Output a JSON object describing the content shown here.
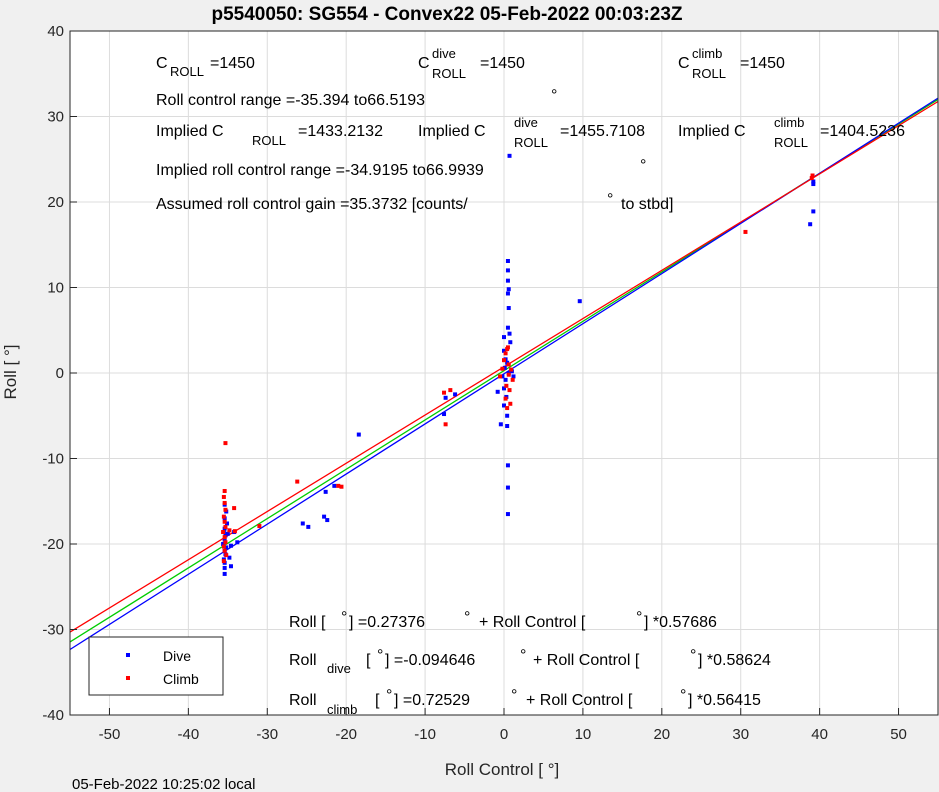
{
  "chart_data": {
    "type": "scatter",
    "title": "p5540050: SG554 - Convex22 05-Feb-2022 00:03:23Z",
    "xlabel": "Roll Control [   °]",
    "ylabel": "Roll [   °]",
    "xlim": [
      -55,
      55
    ],
    "ylim": [
      -40,
      40
    ],
    "xticks": [
      -50,
      -40,
      -30,
      -20,
      -10,
      0,
      10,
      20,
      30,
      40,
      50
    ],
    "yticks": [
      -40,
      -30,
      -20,
      -10,
      0,
      10,
      20,
      30,
      40
    ],
    "grid": true,
    "legend_position": "bottom-left",
    "series": [
      {
        "name": "Dive",
        "color": "#0000ff",
        "points": [
          [
            -35.4,
            -23.5
          ],
          [
            -35.4,
            -22.8
          ],
          [
            -35.4,
            -22.2
          ],
          [
            -35.5,
            -21.8
          ],
          [
            -35.3,
            -21.2
          ],
          [
            -35.4,
            -20.8
          ],
          [
            -35.2,
            -20.4
          ],
          [
            -35.6,
            -20
          ],
          [
            -35.4,
            -19.5
          ],
          [
            -35.3,
            -19
          ],
          [
            -35.5,
            -18.6
          ],
          [
            -35.4,
            -18.2
          ],
          [
            -35.1,
            -17.6
          ],
          [
            -35.4,
            -17
          ],
          [
            -35.2,
            -16.2
          ],
          [
            -35.4,
            -15.4
          ],
          [
            -34.8,
            -21.6
          ],
          [
            -34.6,
            -22.6
          ],
          [
            -35,
            -18.8
          ],
          [
            -34.6,
            -20.2
          ],
          [
            -34.2,
            -18.6
          ],
          [
            -33.8,
            -19.8
          ],
          [
            -25.5,
            -17.6
          ],
          [
            -24.8,
            -18
          ],
          [
            -22.8,
            -16.8
          ],
          [
            -22.4,
            -17.2
          ],
          [
            -22.6,
            -13.9
          ],
          [
            -21.5,
            -13.2
          ],
          [
            -18.4,
            -7.2
          ],
          [
            -7.6,
            -4.8
          ],
          [
            -7.4,
            -2.9
          ],
          [
            -6.2,
            -2.5
          ],
          [
            -0.8,
            -2.2
          ],
          [
            -0.4,
            -6
          ],
          [
            0,
            -3.8
          ],
          [
            0,
            -1.8
          ],
          [
            -0.2,
            -0.4
          ],
          [
            0.1,
            0.6
          ],
          [
            0.2,
            1.6
          ],
          [
            0,
            2.6
          ],
          [
            0,
            4.2
          ],
          [
            0.2,
            -0.8
          ],
          [
            0.3,
            -2.8
          ],
          [
            0.4,
            -5
          ],
          [
            0.4,
            -6.2
          ],
          [
            0.5,
            -10.8
          ],
          [
            0.5,
            -13.4
          ],
          [
            0.5,
            -16.5
          ],
          [
            0.5,
            13.1
          ],
          [
            0.5,
            12
          ],
          [
            0.5,
            10.8
          ],
          [
            0.6,
            9.8
          ],
          [
            0.5,
            9.3
          ],
          [
            0.6,
            7.6
          ],
          [
            0.5,
            5.3
          ],
          [
            0.7,
            4.6
          ],
          [
            0.8,
            3.6
          ],
          [
            0.4,
            1.2
          ],
          [
            0.6,
            0
          ],
          [
            1,
            0.2
          ],
          [
            1.2,
            -0.4
          ],
          [
            9.6,
            8.4
          ],
          [
            38.8,
            17.4
          ],
          [
            39.2,
            18.9
          ],
          [
            39.2,
            22.1
          ],
          [
            39.2,
            22.4
          ],
          [
            0.7,
            25.4
          ]
        ]
      },
      {
        "name": "Climb",
        "color": "#ff0000",
        "points": [
          [
            -35.3,
            -8.2
          ],
          [
            -35.4,
            -13.8
          ],
          [
            -35.5,
            -14.5
          ],
          [
            -35.4,
            -15.2
          ],
          [
            -35.3,
            -16
          ],
          [
            -35.5,
            -16.8
          ],
          [
            -35.4,
            -17.4
          ],
          [
            -35.3,
            -18
          ],
          [
            -35.6,
            -18.6
          ],
          [
            -35.4,
            -19.2
          ],
          [
            -35.3,
            -19.8
          ],
          [
            -35.5,
            -20.3
          ],
          [
            -35.4,
            -20.8
          ],
          [
            -35.2,
            -21.3
          ],
          [
            -35.5,
            -22
          ],
          [
            -34.8,
            -18.4
          ],
          [
            -34.2,
            -15.8
          ],
          [
            -34.1,
            -18.5
          ],
          [
            -31,
            -17.9
          ],
          [
            -26.2,
            -12.7
          ],
          [
            -21,
            -13.2
          ],
          [
            -20.6,
            -13.3
          ],
          [
            -7.6,
            -2.3
          ],
          [
            -7.4,
            -6
          ],
          [
            -6.8,
            -2
          ],
          [
            -0.5,
            -0.4
          ],
          [
            -0.2,
            0.5
          ],
          [
            0,
            1.5
          ],
          [
            0.2,
            2.3
          ],
          [
            0.3,
            -1.5
          ],
          [
            0.2,
            -3
          ],
          [
            0.4,
            -4.1
          ],
          [
            0.5,
            3
          ],
          [
            0.6,
            1
          ],
          [
            0.7,
            -2
          ],
          [
            0.8,
            -3.6
          ],
          [
            0.9,
            0.4
          ],
          [
            1.1,
            -0.8
          ],
          [
            0.4,
            2.8
          ],
          [
            0.6,
            -0.2
          ],
          [
            30.6,
            16.5
          ],
          [
            39,
            22.8
          ],
          [
            39.1,
            23.1
          ]
        ]
      }
    ],
    "fit_lines": [
      {
        "name": "Roll fit",
        "color": "#00cc00",
        "intercept": 0.27376,
        "slope": 0.57686
      },
      {
        "name": "Roll dive fit",
        "color": "#0000ff",
        "intercept": -0.094646,
        "slope": 0.58624
      },
      {
        "name": "Roll climb fit",
        "color": "#ff0000",
        "intercept": 0.72529,
        "slope": 0.56415
      }
    ],
    "legend": [
      "Dive",
      "Climb"
    ],
    "footer": "05-Feb-2022 10:25:02 local"
  },
  "annotations": {
    "c_roll": {
      "main": "C",
      "sub": "ROLL",
      "value": "=1450"
    },
    "c_roll_dive": {
      "main": "C",
      "sup": "dive",
      "sub": "ROLL",
      "value": "=1450"
    },
    "c_roll_climb": {
      "main": "C",
      "sup": "climb",
      "sub": "ROLL",
      "value": "=1450"
    },
    "roll_range": "Roll control range =-35.394 to66.5193",
    "implied_c": {
      "main": "Implied C",
      "sub": "ROLL",
      "value": "=1433.2132"
    },
    "implied_c_dive": {
      "main": "Implied C",
      "sup": "dive",
      "sub": "ROLL",
      "value": "=1455.7108"
    },
    "implied_c_climb": {
      "main": "Implied C",
      "sup": "climb",
      "sub": "ROLL",
      "value": "=1404.5236"
    },
    "implied_range": "Implied roll control range =-34.9195 to66.9939",
    "gain_text": "Assumed roll control gain =35.3732 [counts/",
    "gain_tail": "to stbd]",
    "fit_all": {
      "a": "Roll [",
      "b": "] =0.27376",
      "c": "+ Roll Control [",
      "d": "] *0.57686"
    },
    "fit_dive": {
      "a": "Roll",
      "sub": "dive",
      "b": "[",
      "c": "] =-0.094646",
      "d": "+ Roll Control [",
      "e": "] *0.58624"
    },
    "fit_climb": {
      "a": "Roll",
      "sub": "climb",
      "b": "[",
      "c": "] =0.72529",
      "d": "+ Roll Control [",
      "e": "] *0.56415"
    },
    "deg_symbol": "°"
  }
}
